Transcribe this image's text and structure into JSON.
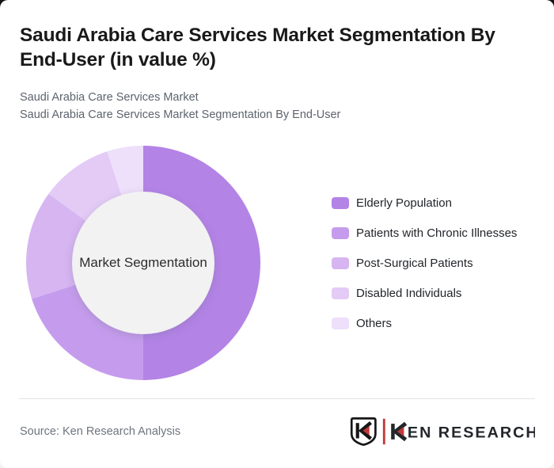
{
  "header": {
    "title": "Saudi Arabia Care Services Market Segmentation By End-User (in value %)",
    "subtitles": [
      "Saudi Arabia Care Services Market",
      "Saudi Arabia Care Services Market Segmentation By End-User"
    ]
  },
  "chart_data": {
    "type": "pie",
    "subtype": "donut",
    "title": "Saudi Arabia Care Services Market Segmentation By End-User (in value %)",
    "unit": "value %",
    "center_label": "Market Segmentation",
    "start_angle_deg": 0,
    "direction": "clockwise",
    "legend_position": "right",
    "data_labels_shown": false,
    "segments": [
      {
        "label": "Elderly Population",
        "value": 50,
        "color": "#b383e6"
      },
      {
        "label": "Patients with Chronic Illnesses",
        "value": 20,
        "color": "#c59ced"
      },
      {
        "label": "Post-Surgical Patients",
        "value": 15,
        "color": "#d6b5f1"
      },
      {
        "label": "Disabled Individuals",
        "value": 10,
        "color": "#e3cbf6"
      },
      {
        "label": "Others",
        "value": 5,
        "color": "#eedffb"
      }
    ]
  },
  "footer": {
    "source": "Source: Ken Research Analysis",
    "logo_text_k": "K",
    "logo_text_rest": "EN RESEARCH",
    "logo_accent": "#c13a3a",
    "logo_ink": "#23262b"
  },
  "colors": {
    "card_background": "#ffffff",
    "inner_circle": "#f2f2f2",
    "title_text": "#191919",
    "subtitle_text": "#5d646e",
    "legend_text": "#22252a",
    "divider": "#e3e3e6",
    "source_text": "#6e757f"
  }
}
